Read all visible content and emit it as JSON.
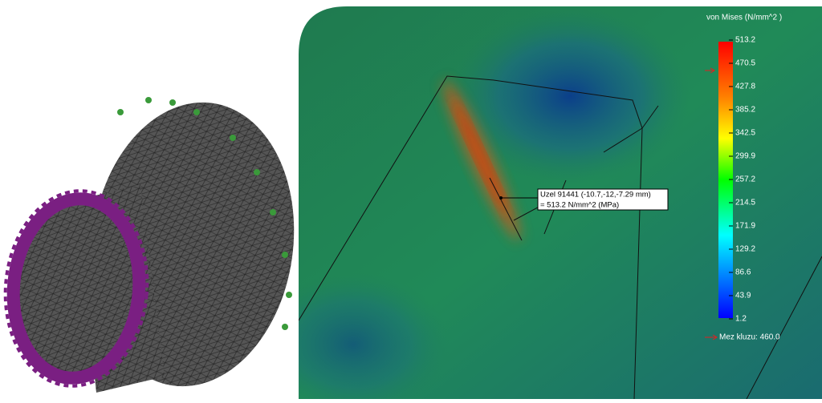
{
  "legend": {
    "title": "von Mises (N/mm^2 )",
    "ticks": [
      "513.2",
      "470.5",
      "427.8",
      "385.2",
      "342.5",
      "299.9",
      "257.2",
      "214.5",
      "171.9",
      "129.2",
      "86.6",
      "43.9",
      "1.2"
    ],
    "yield": "Mez kluzu: 460.0"
  },
  "probe": {
    "line1": "Uzel 91441 (-10.7,-12,-7.29 mm)",
    "line2": "= 513.2   N/mm^2 (MPa)"
  }
}
